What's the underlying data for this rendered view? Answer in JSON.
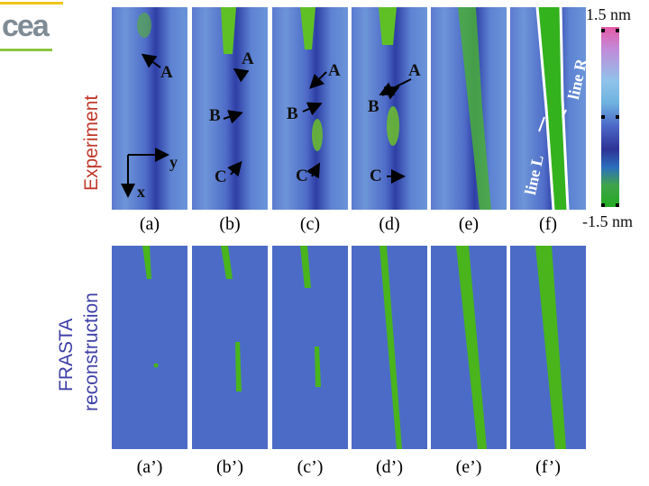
{
  "logo": {
    "text": "cea"
  },
  "labels": {
    "experiment": "Experiment",
    "reconstruction_line1": "FRASTA",
    "reconstruction_line2": "reconstruction"
  },
  "top_captions": [
    "(a)",
    "(b)",
    "(c)",
    "(d)",
    "(e)",
    "(f)"
  ],
  "bottom_captions": [
    "(a’)",
    "(b’)",
    "(c’)",
    "(d’)",
    "(e’)",
    "(f’)"
  ],
  "markers": {
    "a_A": "A",
    "b_A": "A",
    "b_B": "B",
    "b_C": "C",
    "c_A": "A",
    "c_B": "B",
    "c_C": "C",
    "d_A": "A",
    "d_B": "B",
    "d_C": "C"
  },
  "axes": {
    "x": "x",
    "y": "y"
  },
  "lines": {
    "left": "line L",
    "right": "line R"
  },
  "colorbar": {
    "max": "1.5 nm",
    "min": "-1.5 nm"
  },
  "colors": {
    "experiment_label": "#c0392b",
    "reconstruction_label": "#3d3fa6",
    "logo_gold": "#f0c419",
    "logo_green": "#8dc63f",
    "fracture_green": "#49b41c",
    "background_blue": "#4c6bc6"
  }
}
